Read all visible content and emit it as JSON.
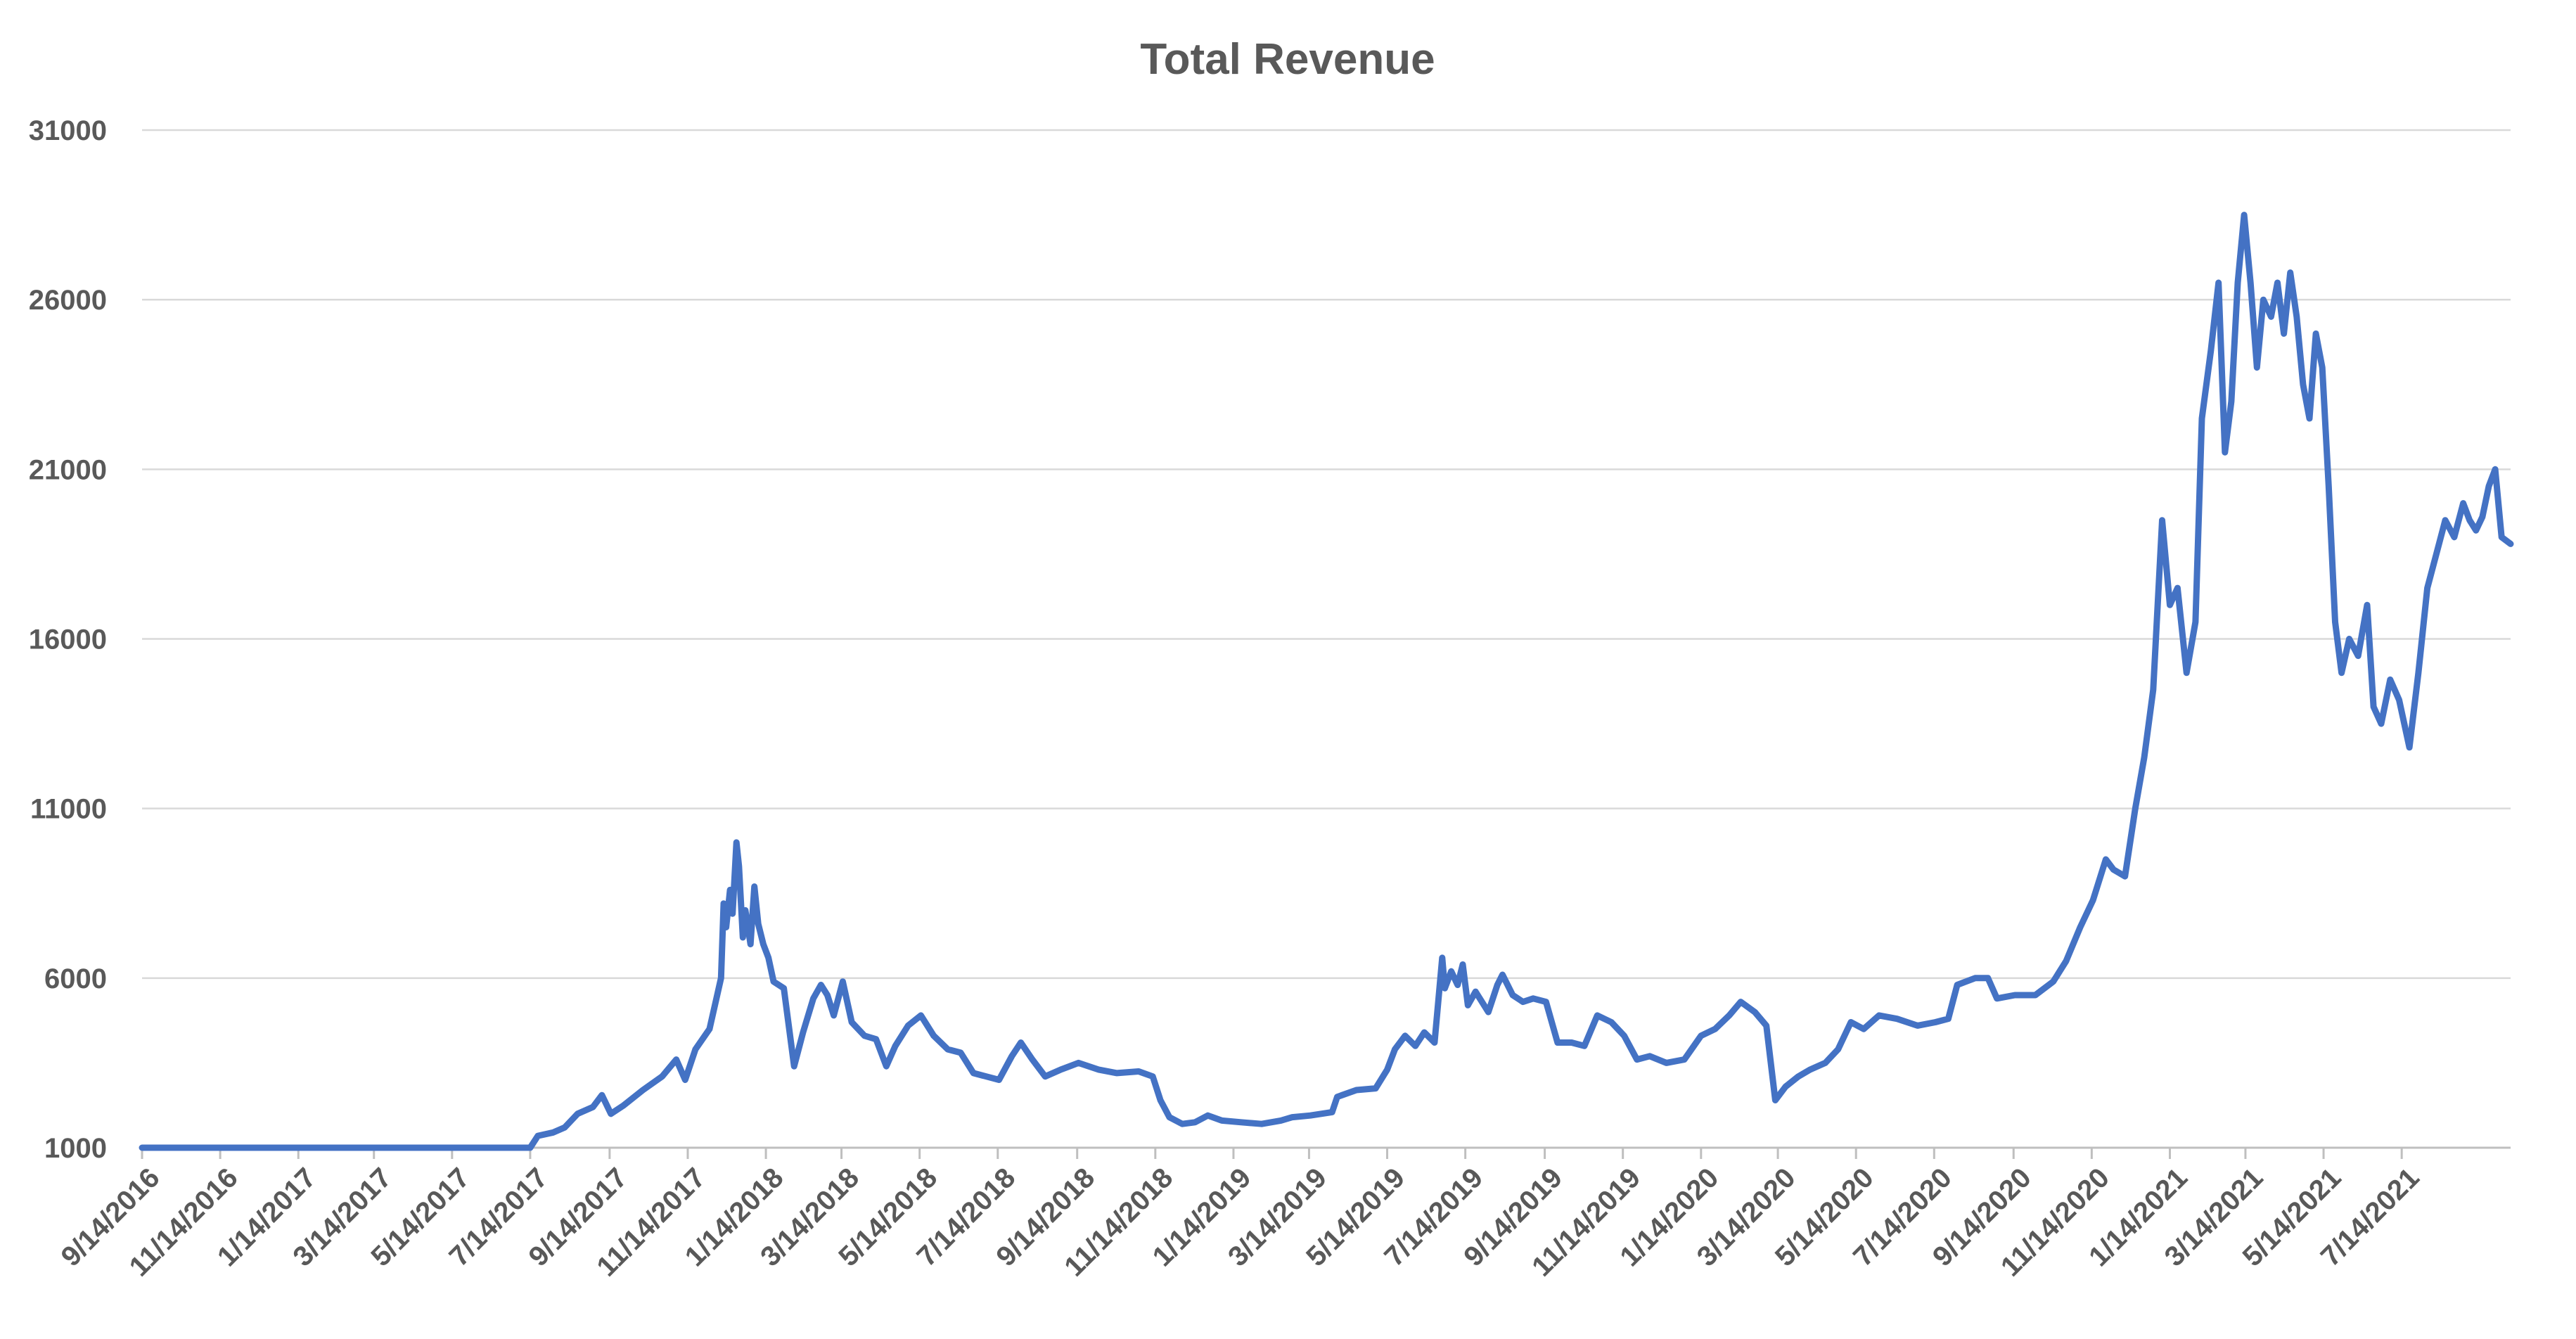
{
  "chart_data": {
    "type": "line",
    "title": "Total Revenue",
    "xlabel": "",
    "ylabel": "",
    "ylim": [
      1000,
      31000
    ],
    "yticks": [
      1000,
      6000,
      11000,
      16000,
      21000,
      26000,
      31000
    ],
    "xlim": [
      "9/14/2016",
      "10/7/2021"
    ],
    "xticks": [
      "9/14/2016",
      "11/14/2016",
      "1/14/2017",
      "3/14/2017",
      "5/14/2017",
      "7/14/2017",
      "9/14/2017",
      "11/14/2017",
      "1/14/2018",
      "3/14/2018",
      "5/14/2018",
      "7/14/2018",
      "9/14/2018",
      "11/14/2018",
      "1/14/2019",
      "3/14/2019",
      "5/14/2019",
      "7/14/2019",
      "9/14/2019",
      "11/14/2019",
      "1/14/2020",
      "3/14/2020",
      "5/14/2020",
      "7/14/2020",
      "9/14/2020",
      "11/14/2020",
      "1/14/2021",
      "3/14/2021",
      "5/14/2021",
      "7/14/2021"
    ],
    "grid": true,
    "legend": "none",
    "series_color": "#4472C4",
    "series": [
      {
        "values": [
          [
            "9/14/2016",
            1000
          ],
          [
            "7/14/2017",
            1000
          ],
          [
            "7/20/2017",
            1350
          ],
          [
            "8/1/2017",
            1450
          ],
          [
            "8/10/2017",
            1600
          ],
          [
            "8/20/2017",
            2000
          ],
          [
            "9/1/2017",
            2200
          ],
          [
            "9/8/2017",
            2550
          ],
          [
            "9/15/2017",
            2000
          ],
          [
            "9/25/2017",
            2250
          ],
          [
            "10/10/2017",
            2700
          ],
          [
            "10/25/2017",
            3100
          ],
          [
            "11/5/2017",
            3600
          ],
          [
            "11/12/2017",
            3000
          ],
          [
            "11/20/2017",
            3900
          ],
          [
            "12/1/2017",
            4500
          ],
          [
            "12/10/2017",
            6000
          ],
          [
            "12/12/2017",
            8200
          ],
          [
            "12/14/2017",
            7500
          ],
          [
            "12/17/2017",
            8600
          ],
          [
            "12/19/2017",
            7900
          ],
          [
            "12/22/2017",
            10000
          ],
          [
            "12/24/2017",
            9300
          ],
          [
            "12/27/2017",
            7200
          ],
          [
            "12/29/2017",
            8000
          ],
          [
            "1/2/2018",
            7000
          ],
          [
            "1/5/2018",
            8700
          ],
          [
            "1/8/2018",
            7600
          ],
          [
            "1/12/2018",
            7000
          ],
          [
            "1/16/2018",
            6600
          ],
          [
            "1/20/2018",
            5900
          ],
          [
            "1/28/2018",
            5700
          ],
          [
            "2/5/2018",
            3400
          ],
          [
            "2/12/2018",
            4400
          ],
          [
            "2/20/2018",
            5400
          ],
          [
            "2/26/2018",
            5800
          ],
          [
            "3/3/2018",
            5500
          ],
          [
            "3/8/2018",
            4900
          ],
          [
            "3/15/2018",
            5900
          ],
          [
            "3/22/2018",
            4700
          ],
          [
            "4/1/2018",
            4300
          ],
          [
            "4/10/2018",
            4200
          ],
          [
            "4/18/2018",
            3400
          ],
          [
            "4/25/2018",
            4000
          ],
          [
            "5/5/2018",
            4600
          ],
          [
            "5/15/2018",
            4900
          ],
          [
            "5/25/2018",
            4300
          ],
          [
            "6/5/2018",
            3900
          ],
          [
            "6/15/2018",
            3800
          ],
          [
            "6/25/2018",
            3200
          ],
          [
            "7/5/2018",
            3100
          ],
          [
            "7/15/2018",
            3000
          ],
          [
            "7/25/2018",
            3700
          ],
          [
            "8/1/2018",
            4100
          ],
          [
            "8/10/2018",
            3600
          ],
          [
            "8/20/2018",
            3100
          ],
          [
            "9/1/2018",
            3300
          ],
          [
            "9/15/2018",
            3500
          ],
          [
            "10/1/2018",
            3300
          ],
          [
            "10/15/2018",
            3200
          ],
          [
            "11/1/2018",
            3250
          ],
          [
            "11/12/2018",
            3100
          ],
          [
            "11/18/2018",
            2400
          ],
          [
            "11/25/2018",
            1900
          ],
          [
            "12/5/2018",
            1700
          ],
          [
            "12/15/2018",
            1750
          ],
          [
            "12/25/2018",
            1950
          ],
          [
            "1/5/2019",
            1800
          ],
          [
            "1/20/2019",
            1750
          ],
          [
            "2/5/2019",
            1700
          ],
          [
            "2/20/2019",
            1800
          ],
          [
            "3/1/2019",
            1900
          ],
          [
            "3/15/2019",
            1950
          ],
          [
            "4/1/2019",
            2050
          ],
          [
            "4/5/2019",
            2500
          ],
          [
            "4/20/2019",
            2700
          ],
          [
            "5/5/2019",
            2750
          ],
          [
            "5/14/2019",
            3300
          ],
          [
            "5/20/2019",
            3900
          ],
          [
            "5/28/2019",
            4300
          ],
          [
            "6/5/2019",
            4000
          ],
          [
            "6/12/2019",
            4400
          ],
          [
            "6/20/2019",
            4100
          ],
          [
            "6/26/2019",
            6600
          ],
          [
            "6/28/2019",
            5700
          ],
          [
            "7/3/2019",
            6200
          ],
          [
            "7/8/2019",
            5800
          ],
          [
            "7/12/2019",
            6400
          ],
          [
            "7/16/2019",
            5200
          ],
          [
            "7/22/2019",
            5600
          ],
          [
            "8/1/2019",
            5000
          ],
          [
            "8/8/2019",
            5800
          ],
          [
            "8/12/2019",
            6100
          ],
          [
            "8/20/2019",
            5500
          ],
          [
            "8/28/2019",
            5300
          ],
          [
            "9/5/2019",
            5400
          ],
          [
            "9/15/2019",
            5300
          ],
          [
            "9/24/2019",
            4100
          ],
          [
            "10/5/2019",
            4100
          ],
          [
            "10/15/2019",
            4000
          ],
          [
            "10/25/2019",
            4900
          ],
          [
            "11/5/2019",
            4700
          ],
          [
            "11/15/2019",
            4300
          ],
          [
            "11/25/2019",
            3600
          ],
          [
            "12/5/2019",
            3700
          ],
          [
            "12/18/2019",
            3500
          ],
          [
            "1/1/2020",
            3600
          ],
          [
            "1/14/2020",
            4300
          ],
          [
            "1/25/2020",
            4500
          ],
          [
            "2/5/2020",
            4900
          ],
          [
            "2/14/2020",
            5300
          ],
          [
            "2/25/2020",
            5000
          ],
          [
            "3/5/2020",
            4600
          ],
          [
            "3/12/2020",
            2400
          ],
          [
            "3/20/2020",
            2800
          ],
          [
            "3/30/2020",
            3100
          ],
          [
            "4/8/2020",
            3300
          ],
          [
            "4/20/2020",
            3500
          ],
          [
            "4/30/2020",
            3900
          ],
          [
            "5/10/2020",
            4700
          ],
          [
            "5/20/2020",
            4500
          ],
          [
            "6/1/2020",
            4900
          ],
          [
            "6/15/2020",
            4800
          ],
          [
            "7/1/2020",
            4600
          ],
          [
            "7/15/2020",
            4700
          ],
          [
            "7/25/2020",
            4800
          ],
          [
            "8/1/2020",
            5800
          ],
          [
            "8/15/2020",
            6000
          ],
          [
            "8/25/2020",
            6000
          ],
          [
            "9/1/2020",
            5400
          ],
          [
            "9/15/2020",
            5500
          ],
          [
            "10/1/2020",
            5500
          ],
          [
            "10/15/2020",
            5900
          ],
          [
            "10/25/2020",
            6500
          ],
          [
            "11/5/2020",
            7500
          ],
          [
            "11/15/2020",
            8300
          ],
          [
            "11/25/2020",
            9500
          ],
          [
            "12/1/2020",
            9200
          ],
          [
            "12/10/2020",
            9000
          ],
          [
            "12/18/2020",
            11000
          ],
          [
            "12/25/2020",
            12500
          ],
          [
            "1/1/2021",
            14500
          ],
          [
            "1/8/2021",
            19500
          ],
          [
            "1/14/2021",
            17000
          ],
          [
            "1/20/2021",
            17500
          ],
          [
            "1/27/2021",
            15000
          ],
          [
            "2/3/2021",
            16500
          ],
          [
            "2/8/2021",
            22500
          ],
          [
            "2/15/2021",
            24500
          ],
          [
            "2/21/2021",
            26500
          ],
          [
            "2/26/2021",
            21500
          ],
          [
            "3/3/2021",
            23000
          ],
          [
            "3/8/2021",
            26500
          ],
          [
            "3/13/2021",
            28500
          ],
          [
            "3/18/2021",
            26500
          ],
          [
            "3/23/2021",
            24000
          ],
          [
            "3/28/2021",
            26000
          ],
          [
            "4/3/2021",
            25500
          ],
          [
            "4/8/2021",
            26500
          ],
          [
            "4/13/2021",
            25000
          ],
          [
            "4/18/2021",
            26800
          ],
          [
            "4/23/2021",
            25500
          ],
          [
            "4/28/2021",
            23500
          ],
          [
            "5/3/2021",
            22500
          ],
          [
            "5/8/2021",
            25000
          ],
          [
            "5/13/2021",
            24000
          ],
          [
            "5/18/2021",
            20500
          ],
          [
            "5/23/2021",
            16500
          ],
          [
            "5/28/2021",
            15000
          ],
          [
            "6/3/2021",
            16000
          ],
          [
            "6/10/2021",
            15500
          ],
          [
            "6/17/2021",
            17000
          ],
          [
            "6/22/2021",
            14000
          ],
          [
            "6/28/2021",
            13500
          ],
          [
            "7/5/2021",
            14800
          ],
          [
            "7/12/2021",
            14200
          ],
          [
            "7/20/2021",
            12800
          ],
          [
            "7/27/2021",
            15000
          ],
          [
            "8/3/2021",
            17500
          ],
          [
            "8/10/2021",
            18500
          ],
          [
            "8/17/2021",
            19500
          ],
          [
            "8/24/2021",
            19000
          ],
          [
            "8/31/2021",
            20000
          ],
          [
            "9/5/2021",
            19500
          ],
          [
            "9/10/2021",
            19200
          ],
          [
            "9/15/2021",
            19600
          ],
          [
            "9/20/2021",
            20500
          ],
          [
            "9/25/2021",
            21000
          ],
          [
            "9/30/2021",
            19000
          ],
          [
            "10/7/2021",
            18800
          ]
        ]
      }
    ]
  }
}
